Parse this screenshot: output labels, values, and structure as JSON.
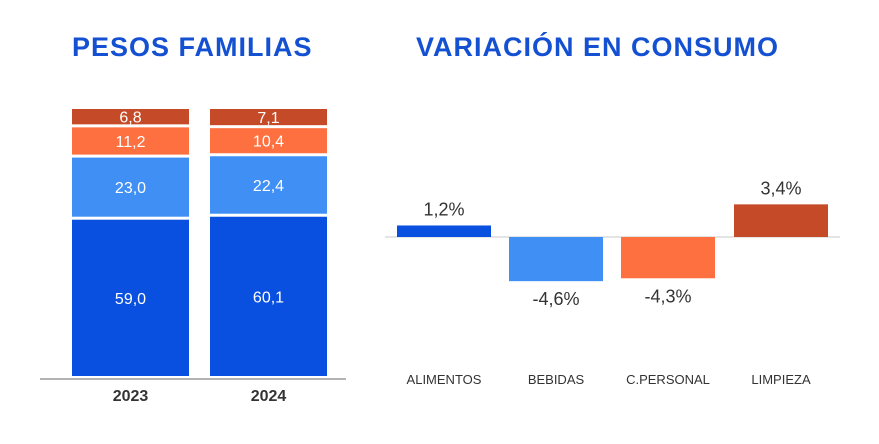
{
  "colors": {
    "title": "#1450d2",
    "alimentos": "#0a50e0",
    "bebidas": "#3f8ff5",
    "cpersonal": "#ff7040",
    "limpieza": "#c54a28",
    "axis": "#9a9a9a",
    "text": "#333333"
  },
  "chart_data": [
    {
      "type": "bar",
      "stacked": true,
      "title": "PESOS FAMILIAS",
      "categories": [
        "2023",
        "2024"
      ],
      "series": [
        {
          "values": [
            59.0,
            60.1
          ],
          "labels": [
            "59,0",
            "60,1"
          ],
          "color": "#0a50e0"
        },
        {
          "values": [
            23.0,
            22.4
          ],
          "labels": [
            "23,0",
            "22,4"
          ],
          "color": "#3f8ff5"
        },
        {
          "values": [
            11.2,
            10.4
          ],
          "labels": [
            "11,2",
            "10,4"
          ],
          "color": "#ff7040"
        },
        {
          "values": [
            6.8,
            7.1
          ],
          "labels": [
            "6,8",
            "7,1"
          ],
          "color": "#c54a28"
        }
      ],
      "ylim": [
        0,
        100
      ]
    },
    {
      "type": "bar",
      "title": "VARIACIÓN EN CONSUMO",
      "categories": [
        "ALIMENTOS",
        "BEBIDAS",
        "C.PERSONAL",
        "LIMPIEZA"
      ],
      "values": [
        1.2,
        -4.6,
        -4.3,
        3.4
      ],
      "labels": [
        "1,2%",
        "-4,6%",
        "-4,3%",
        "3,4%"
      ],
      "colors": [
        "#0a50e0",
        "#3f8ff5",
        "#ff7040",
        "#c54a28"
      ]
    }
  ]
}
